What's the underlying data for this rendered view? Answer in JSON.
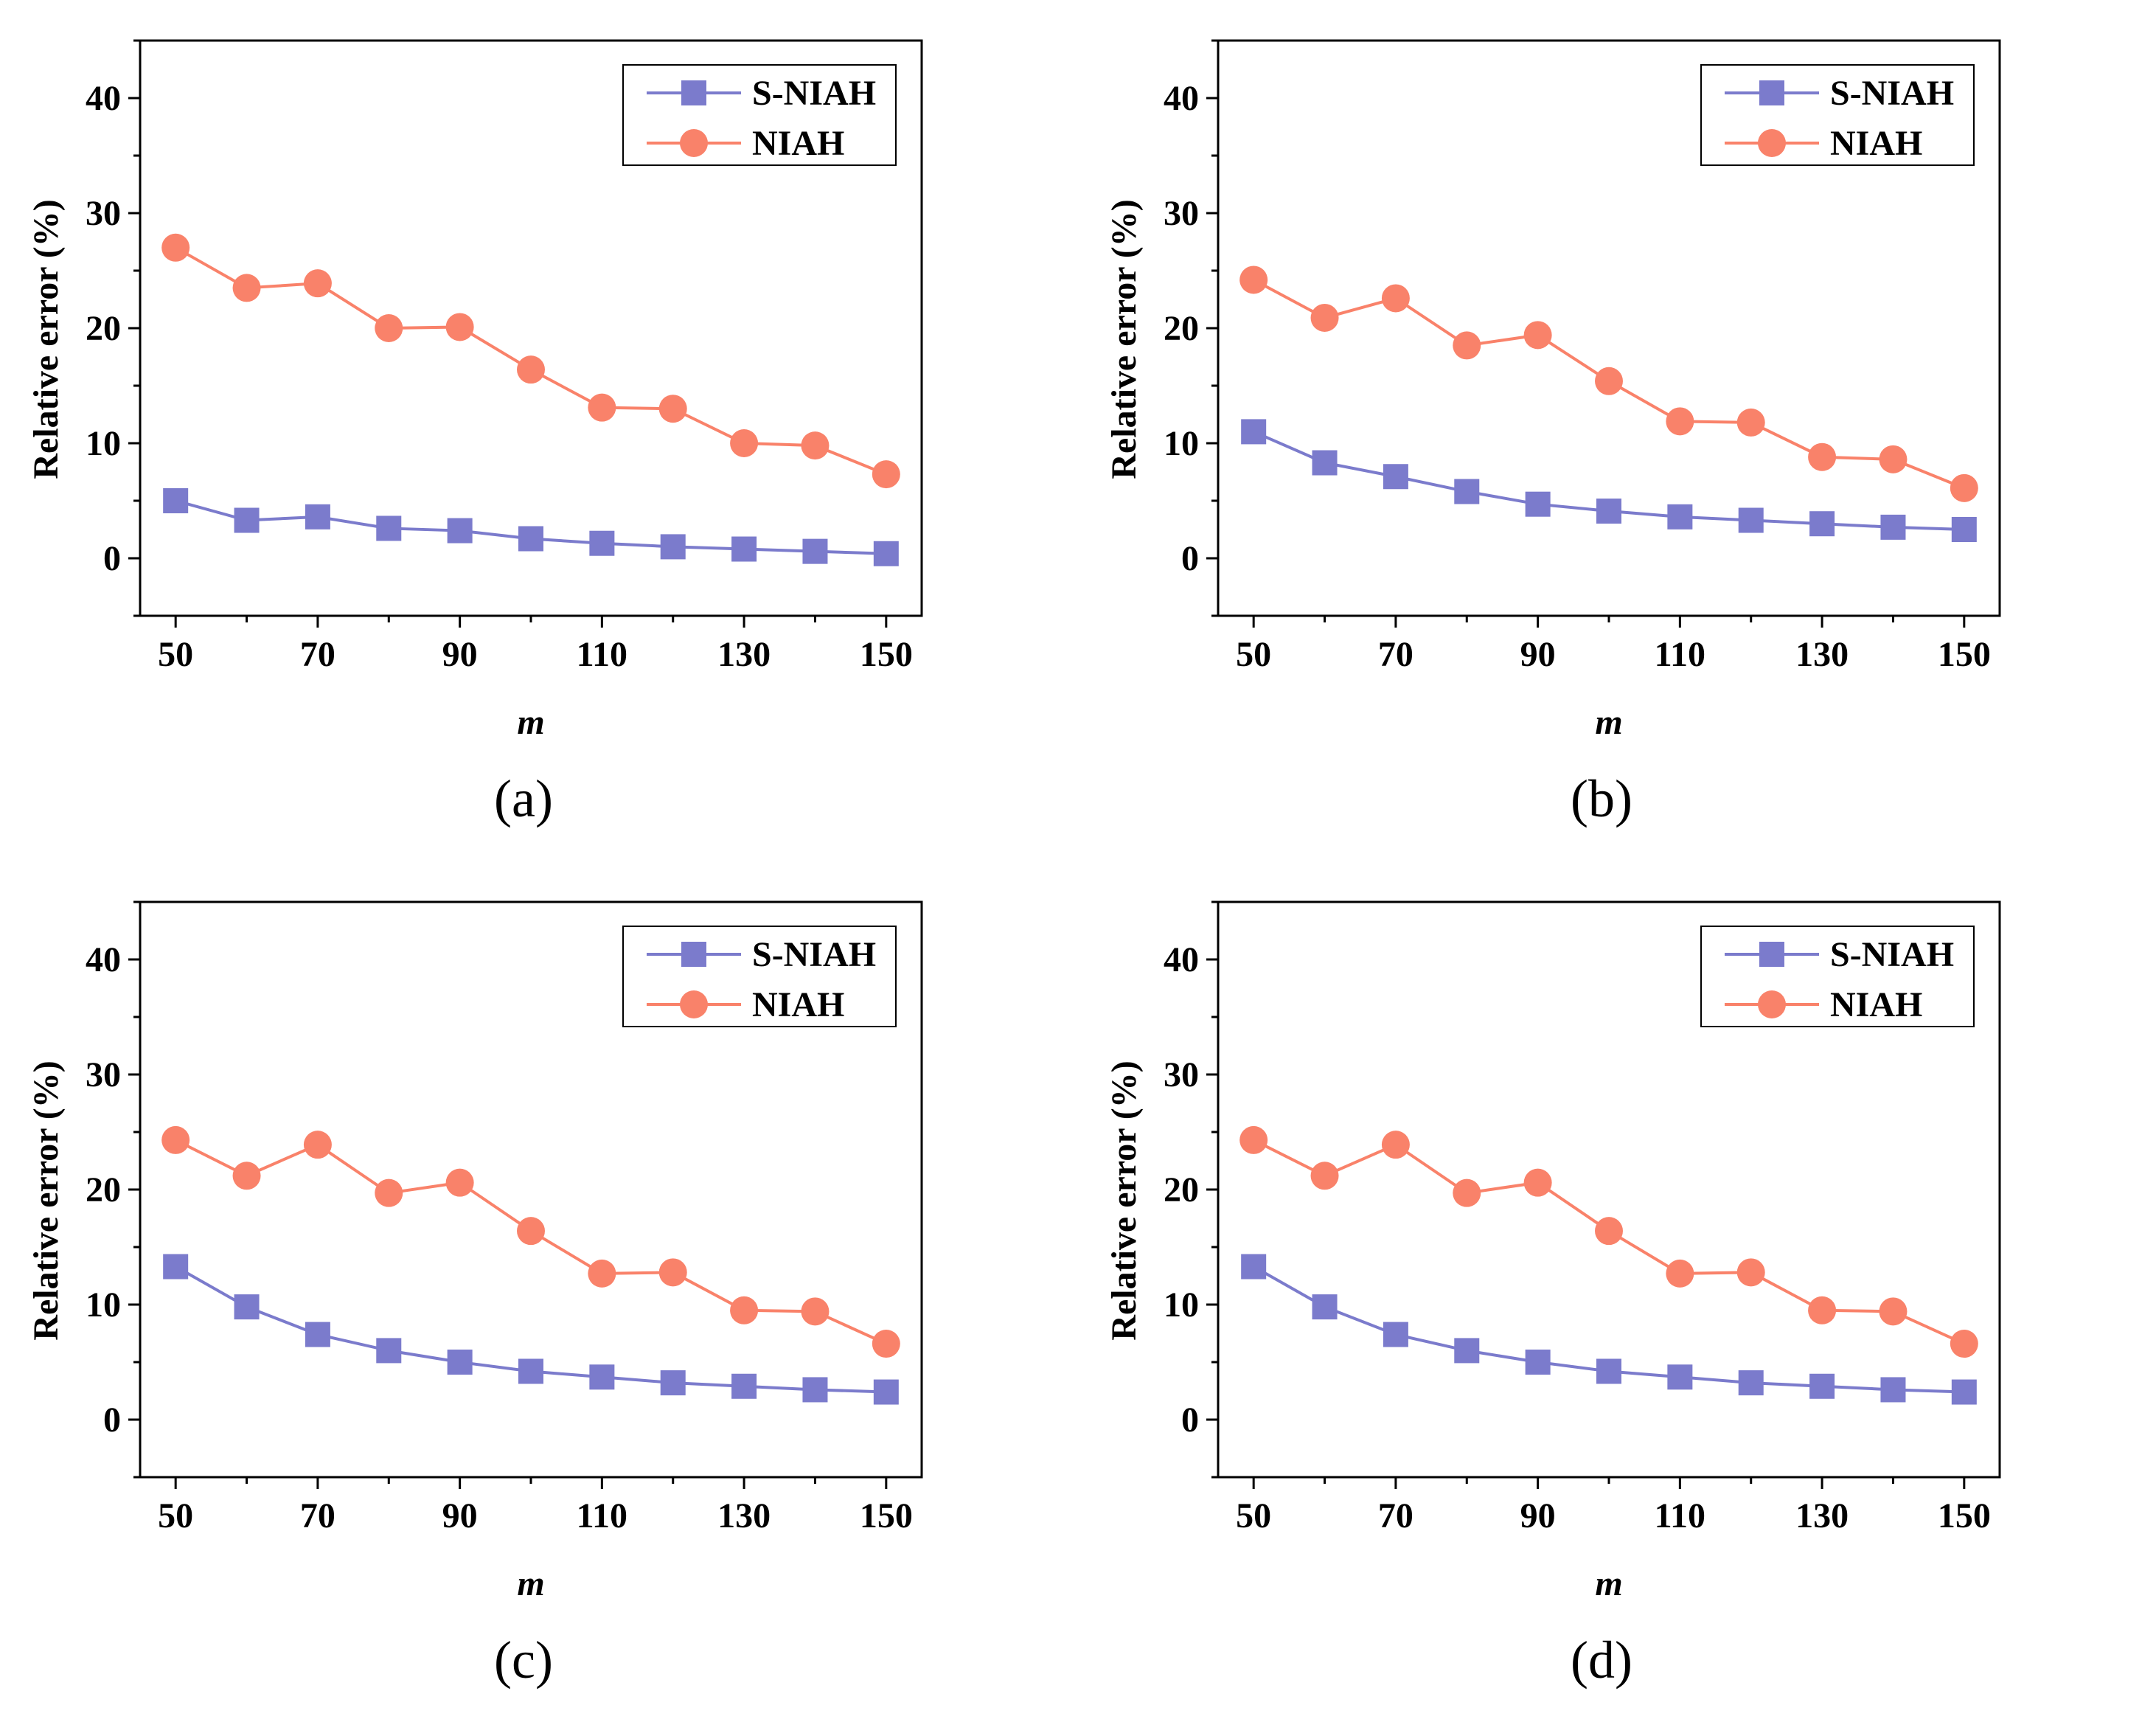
{
  "colors": {
    "s_niah": "#7B7BCC",
    "niah": "#F9826A",
    "axis": "#000000"
  },
  "chart_data": [
    {
      "type": "line",
      "panel_label": "(a)",
      "xlabel": "m",
      "ylabel": "Relative error (%)",
      "xlim": [
        45,
        155
      ],
      "ylim": [
        -5,
        45
      ],
      "xticks": [
        "50",
        "70",
        "90",
        "110",
        "130",
        "150"
      ],
      "yticks": [
        "0",
        "10",
        "20",
        "30",
        "40"
      ],
      "legend_position": "top-right",
      "x": [
        50,
        60,
        70,
        80,
        90,
        100,
        110,
        120,
        130,
        140,
        150
      ],
      "series": [
        {
          "name": "S-NIAH",
          "marker": "square",
          "values": [
            5.0,
            3.3,
            3.6,
            2.6,
            2.4,
            1.7,
            1.3,
            1.0,
            0.8,
            0.6,
            0.4
          ]
        },
        {
          "name": "NIAH",
          "marker": "circle",
          "values": [
            27.0,
            23.5,
            23.9,
            20.0,
            20.1,
            16.4,
            13.1,
            13.0,
            10.0,
            9.8,
            7.3
          ]
        }
      ]
    },
    {
      "type": "line",
      "panel_label": "(b)",
      "xlabel": "m",
      "ylabel": "Relative error (%)",
      "xlim": [
        45,
        155
      ],
      "ylim": [
        -5,
        45
      ],
      "xticks": [
        "50",
        "70",
        "90",
        "110",
        "130",
        "150"
      ],
      "yticks": [
        "0",
        "10",
        "20",
        "30",
        "40"
      ],
      "legend_position": "top-right",
      "x": [
        50,
        60,
        70,
        80,
        90,
        100,
        110,
        120,
        130,
        140,
        150
      ],
      "series": [
        {
          "name": "S-NIAH",
          "marker": "square",
          "values": [
            11.0,
            8.3,
            7.1,
            5.8,
            4.7,
            4.1,
            3.6,
            3.3,
            3.0,
            2.7,
            2.5
          ]
        },
        {
          "name": "NIAH",
          "marker": "circle",
          "values": [
            24.2,
            20.9,
            22.6,
            18.5,
            19.4,
            15.4,
            11.9,
            11.8,
            8.8,
            8.6,
            6.1
          ]
        }
      ]
    },
    {
      "type": "line",
      "panel_label": "(c)",
      "xlabel": "m",
      "ylabel": "Relative error (%)",
      "xlim": [
        45,
        155
      ],
      "ylim": [
        -5,
        45
      ],
      "xticks": [
        "50",
        "70",
        "90",
        "110",
        "130",
        "150"
      ],
      "yticks": [
        "0",
        "10",
        "20",
        "30",
        "40"
      ],
      "legend_position": "top-right",
      "x": [
        50,
        60,
        70,
        80,
        90,
        100,
        110,
        120,
        130,
        140,
        150
      ],
      "series": [
        {
          "name": "S-NIAH",
          "marker": "square",
          "values": [
            13.3,
            9.8,
            7.4,
            6.0,
            5.0,
            4.2,
            3.7,
            3.2,
            2.9,
            2.6,
            2.4
          ]
        },
        {
          "name": "NIAH",
          "marker": "circle",
          "values": [
            24.3,
            21.2,
            23.9,
            19.7,
            20.6,
            16.4,
            12.7,
            12.8,
            9.5,
            9.4,
            6.6
          ]
        }
      ]
    },
    {
      "type": "line",
      "panel_label": "(d)",
      "xlabel": "m",
      "ylabel": "Relative error (%)",
      "xlim": [
        45,
        155
      ],
      "ylim": [
        -5,
        45
      ],
      "xticks": [
        "50",
        "70",
        "90",
        "110",
        "130",
        "150"
      ],
      "yticks": [
        "0",
        "10",
        "20",
        "30",
        "40"
      ],
      "legend_position": "top-right",
      "x": [
        50,
        60,
        70,
        80,
        90,
        100,
        110,
        120,
        130,
        140,
        150
      ],
      "series": [
        {
          "name": "S-NIAH",
          "marker": "square",
          "values": [
            13.3,
            9.8,
            7.4,
            6.0,
            5.0,
            4.2,
            3.7,
            3.2,
            2.9,
            2.6,
            2.4
          ]
        },
        {
          "name": "NIAH",
          "marker": "circle",
          "values": [
            24.3,
            21.2,
            23.9,
            19.7,
            20.6,
            16.4,
            12.7,
            12.8,
            9.5,
            9.4,
            6.6
          ]
        }
      ]
    }
  ]
}
